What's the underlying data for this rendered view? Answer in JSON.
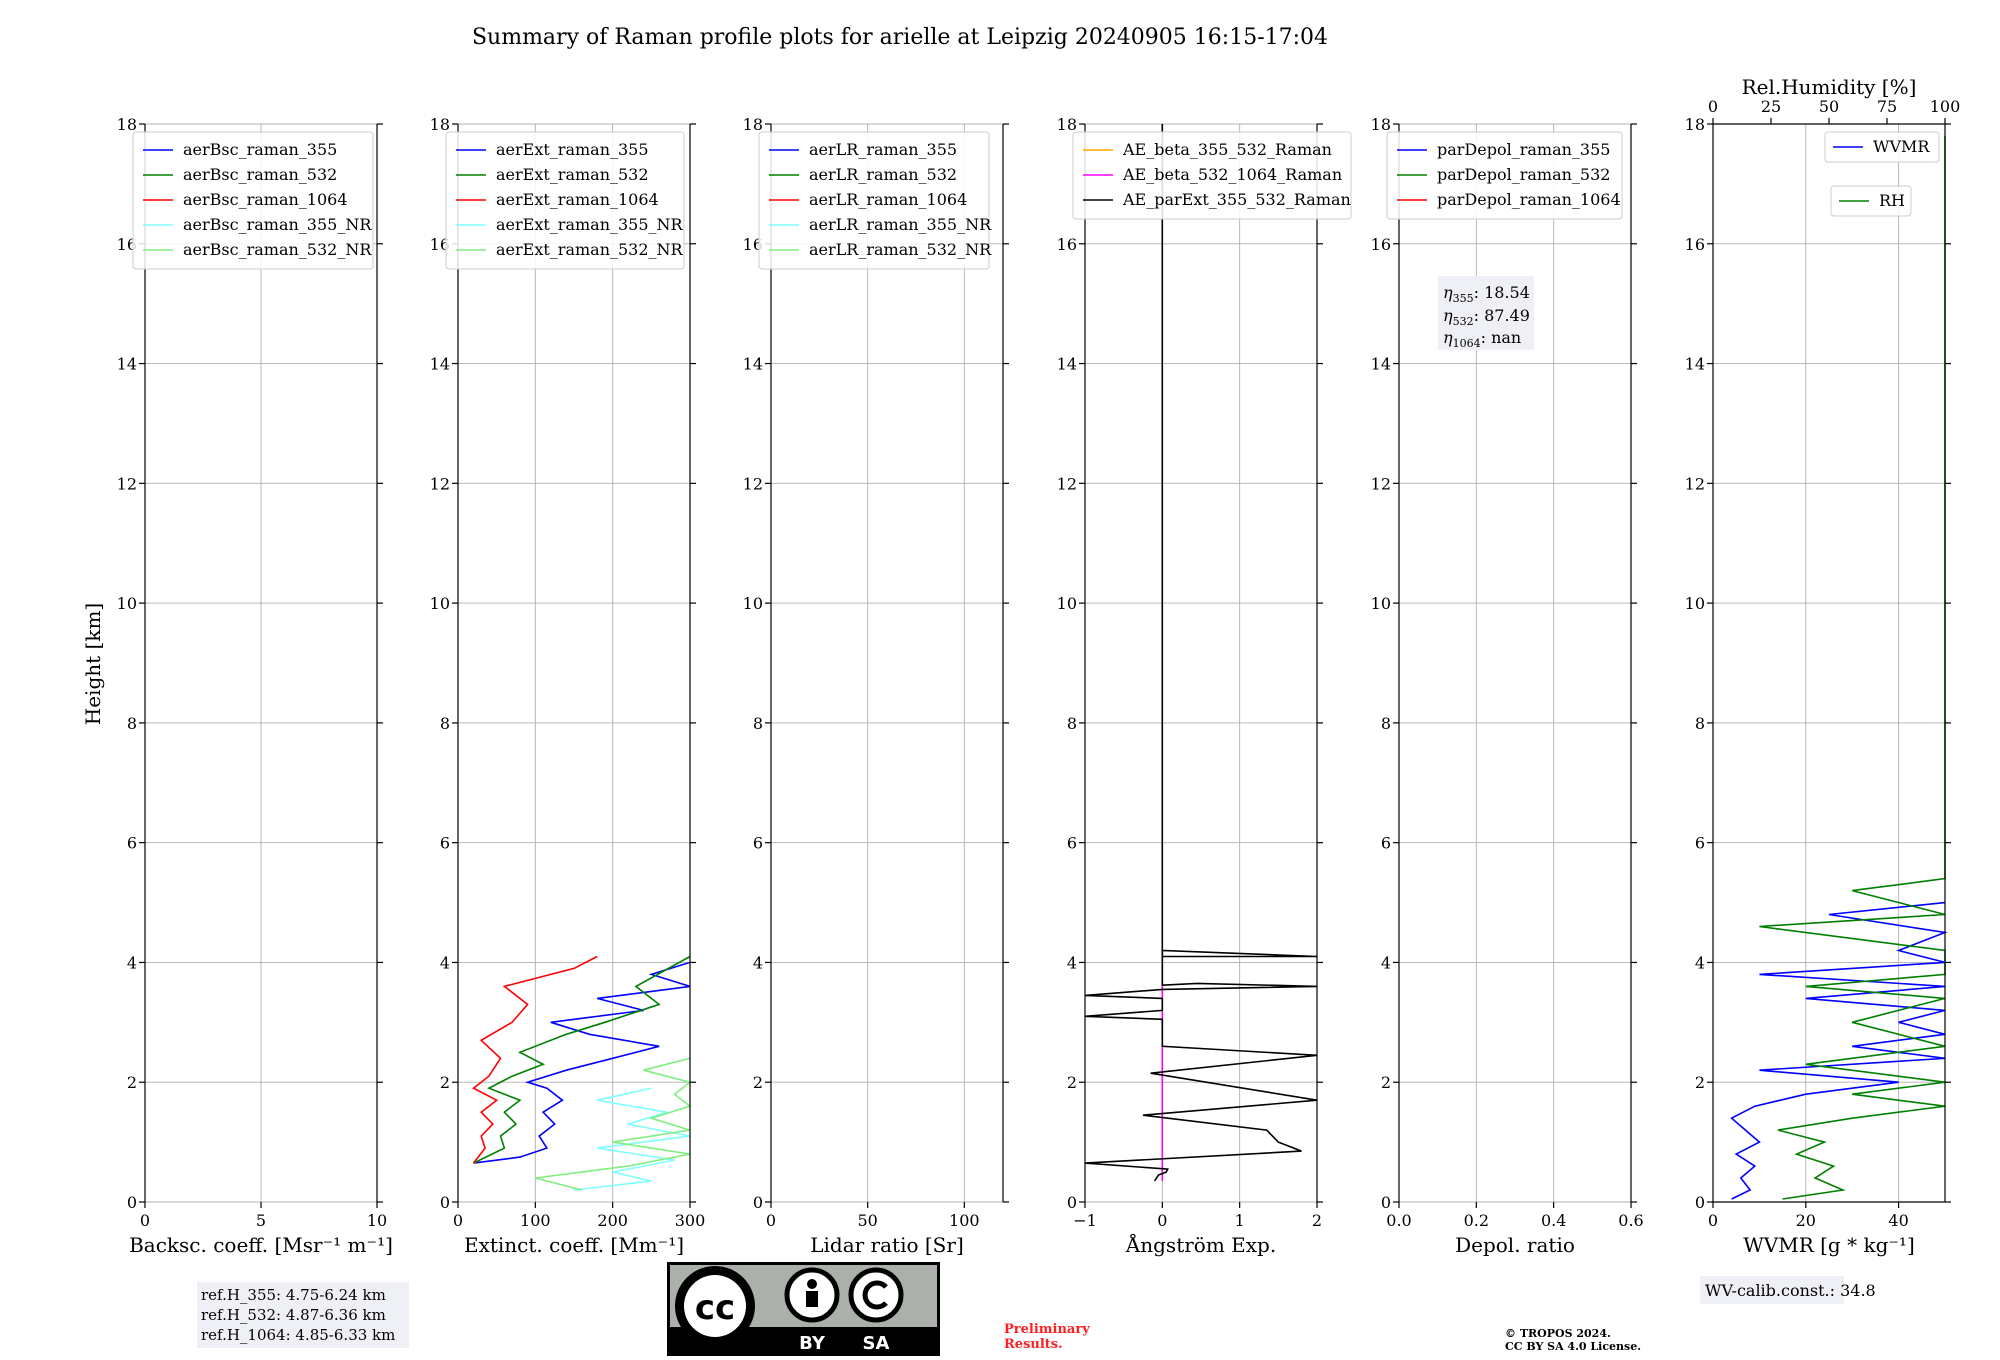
{
  "title": "Summary of Raman profile plots for arielle at Leipzig 20240905 16:15-17:04",
  "ylabel": "Height [km]",
  "yticks": [
    "0",
    "2",
    "4",
    "6",
    "8",
    "10",
    "12",
    "14",
    "16",
    "18"
  ],
  "colors": {
    "c355": "#0000ff",
    "c532": "#008000",
    "c1064": "#ff0000",
    "c355nr": "#80ffff",
    "c532nr": "#80ee80",
    "orange": "#ffa500",
    "magenta": "#ff00ff",
    "black": "#000000",
    "pol_bg": "#eef0f5"
  },
  "chart_data": [
    {
      "type": "line",
      "id": "bsc",
      "xlabel": "Backsc. coeff. [Msr⁻¹ m⁻¹]",
      "xlim": [
        0,
        10
      ],
      "ylim": [
        0,
        18
      ],
      "xticks": [
        "0",
        "5",
        "10"
      ],
      "xtick_values": [
        0,
        5,
        10
      ],
      "series": [
        {
          "name": "aerBsc_raman_355",
          "color": "c355",
          "points": []
        },
        {
          "name": "aerBsc_raman_532",
          "color": "c532",
          "points": []
        },
        {
          "name": "aerBsc_raman_1064",
          "color": "c1064",
          "points": []
        },
        {
          "name": "aerBsc_raman_355_NR",
          "color": "c355nr",
          "points": []
        },
        {
          "name": "aerBsc_raman_532_NR",
          "color": "c532nr",
          "points": []
        }
      ]
    },
    {
      "type": "line",
      "id": "ext",
      "xlabel": "Extinct. coeff. [Mm⁻¹]",
      "xlim": [
        0,
        300
      ],
      "ylim": [
        0,
        18
      ],
      "xticks": [
        "0",
        "100",
        "200",
        "300"
      ],
      "xtick_values": [
        0,
        100,
        200,
        300
      ],
      "series": [
        {
          "name": "aerExt_raman_355",
          "color": "c355",
          "points": [
            [
              20,
              0.65
            ],
            [
              80,
              0.75
            ],
            [
              115,
              0.9
            ],
            [
              105,
              1.1
            ],
            [
              125,
              1.3
            ],
            [
              110,
              1.5
            ],
            [
              135,
              1.7
            ],
            [
              115,
              1.9
            ],
            [
              90,
              2.0
            ],
            [
              140,
              2.2
            ],
            [
              200,
              2.4
            ],
            [
              260,
              2.6
            ],
            [
              170,
              2.8
            ],
            [
              120,
              3.0
            ],
            [
              240,
              3.2
            ],
            [
              180,
              3.4
            ],
            [
              300,
              3.6
            ],
            [
              250,
              3.8
            ],
            [
              300,
              4.0
            ]
          ]
        },
        {
          "name": "aerExt_raman_532",
          "color": "c532",
          "points": [
            [
              20,
              0.65
            ],
            [
              60,
              0.9
            ],
            [
              55,
              1.1
            ],
            [
              75,
              1.3
            ],
            [
              60,
              1.5
            ],
            [
              80,
              1.7
            ],
            [
              40,
              1.9
            ],
            [
              70,
              2.1
            ],
            [
              110,
              2.3
            ],
            [
              80,
              2.5
            ],
            [
              140,
              2.8
            ],
            [
              190,
              3.0
            ],
            [
              260,
              3.3
            ],
            [
              230,
              3.6
            ],
            [
              300,
              4.1
            ]
          ]
        },
        {
          "name": "aerExt_raman_1064",
          "color": "c1064",
          "points": [
            [
              20,
              0.65
            ],
            [
              35,
              0.9
            ],
            [
              30,
              1.1
            ],
            [
              45,
              1.3
            ],
            [
              30,
              1.5
            ],
            [
              50,
              1.7
            ],
            [
              20,
              1.9
            ],
            [
              40,
              2.1
            ],
            [
              55,
              2.4
            ],
            [
              30,
              2.7
            ],
            [
              70,
              3.0
            ],
            [
              90,
              3.3
            ],
            [
              60,
              3.6
            ],
            [
              150,
              3.9
            ],
            [
              180,
              4.1
            ]
          ]
        },
        {
          "name": "aerExt_raman_355_NR",
          "color": "c355nr",
          "points": [
            [
              150,
              0.2
            ],
            [
              250,
              0.35
            ],
            [
              200,
              0.5
            ],
            [
              280,
              0.7
            ],
            [
              180,
              0.9
            ],
            [
              300,
              1.1
            ],
            [
              220,
              1.3
            ],
            [
              270,
              1.5
            ],
            [
              180,
              1.7
            ],
            [
              250,
              1.9
            ]
          ]
        },
        {
          "name": "aerExt_raman_532_NR",
          "color": "c532nr",
          "points": [
            [
              160,
              0.2
            ],
            [
              100,
              0.4
            ],
            [
              220,
              0.6
            ],
            [
              300,
              0.8
            ],
            [
              200,
              1.0
            ],
            [
              300,
              1.2
            ],
            [
              250,
              1.4
            ],
            [
              300,
              1.6
            ],
            [
              280,
              1.8
            ],
            [
              300,
              2.0
            ],
            [
              240,
              2.2
            ],
            [
              300,
              2.4
            ]
          ]
        }
      ]
    },
    {
      "type": "line",
      "id": "lr",
      "xlabel": "Lidar ratio [Sr]",
      "xlim": [
        0,
        120
      ],
      "ylim": [
        0,
        18
      ],
      "xticks": [
        "0",
        "50",
        "100"
      ],
      "xtick_values": [
        0,
        50,
        100
      ],
      "series": [
        {
          "name": "aerLR_raman_355",
          "color": "c355",
          "points": []
        },
        {
          "name": "aerLR_raman_532",
          "color": "c532",
          "points": []
        },
        {
          "name": "aerLR_raman_1064",
          "color": "c1064",
          "points": []
        },
        {
          "name": "aerLR_raman_355_NR",
          "color": "c355nr",
          "points": []
        },
        {
          "name": "aerLR_raman_532_NR",
          "color": "c532nr",
          "points": []
        }
      ]
    },
    {
      "type": "line",
      "id": "ae",
      "xlabel": "Ångström Exp.",
      "xlim": [
        -1,
        2
      ],
      "ylim": [
        0,
        18
      ],
      "xticks": [
        "−1",
        "0",
        "1",
        "2"
      ],
      "xtick_values": [
        -1,
        0,
        1,
        2
      ],
      "series": [
        {
          "name": "AE_beta_355_532_Raman",
          "color": "orange",
          "points": []
        },
        {
          "name": "AE_beta_532_1064_Raman",
          "color": "magenta",
          "points": [
            [
              0,
              0.35
            ],
            [
              0,
              4.2
            ]
          ]
        },
        {
          "name": "AE_parExt_355_532_Raman",
          "color": "black",
          "points": [
            [
              -0.1,
              0.35
            ],
            [
              -0.05,
              0.45
            ],
            [
              0.05,
              0.5
            ],
            [
              0.07,
              0.55
            ],
            [
              -1,
              0.65
            ],
            [
              1.8,
              0.85
            ],
            [
              1.5,
              1.0
            ],
            [
              1.35,
              1.2
            ],
            [
              -0.25,
              1.45
            ],
            [
              2,
              1.7
            ],
            [
              -0.15,
              2.15
            ],
            [
              2,
              2.45
            ],
            [
              0,
              2.6
            ],
            [
              0,
              3.05
            ],
            [
              -1,
              3.1
            ],
            [
              0,
              3.2
            ],
            [
              0,
              3.4
            ],
            [
              -1,
              3.45
            ],
            [
              0,
              3.55
            ],
            [
              2,
              3.6
            ],
            [
              0.45,
              3.65
            ],
            [
              0,
              3.62
            ],
            [
              0,
              4.2
            ],
            [
              2,
              4.1
            ],
            [
              0,
              4.1
            ],
            [
              0,
              18
            ]
          ]
        }
      ]
    },
    {
      "type": "line",
      "id": "pdr",
      "xlabel": "Depol. ratio",
      "xlim": [
        0,
        0.6
      ],
      "ylim": [
        0,
        18
      ],
      "xticks": [
        "0.0",
        "0.2",
        "0.4",
        "0.6"
      ],
      "xtick_values": [
        0,
        0.2,
        0.4,
        0.6
      ],
      "series": [
        {
          "name": "parDepol_raman_355",
          "color": "c355",
          "points": []
        },
        {
          "name": "parDepol_raman_532",
          "color": "c532",
          "points": []
        },
        {
          "name": "parDepol_raman_1064",
          "color": "c1064",
          "points": []
        }
      ]
    },
    {
      "type": "line",
      "id": "wv",
      "xlabel": "WVMR [g * kg⁻¹]",
      "xlim": [
        0,
        50
      ],
      "ylim": [
        0,
        18
      ],
      "xticks": [
        "0",
        "20",
        "40"
      ],
      "xtick_values": [
        0,
        20,
        40
      ],
      "top_xlabel": "Rel.Humidity [%]",
      "top_xticks": [
        "0",
        "25",
        "50",
        "75",
        "100"
      ],
      "top_xtick_values": [
        0,
        25,
        50,
        75,
        100
      ],
      "series": [
        {
          "name": "WVMR",
          "color": "c355",
          "points": [
            [
              4,
              0.05
            ],
            [
              8,
              0.2
            ],
            [
              6,
              0.4
            ],
            [
              9,
              0.6
            ],
            [
              5,
              0.8
            ],
            [
              10,
              1.0
            ],
            [
              7,
              1.2
            ],
            [
              4,
              1.4
            ],
            [
              9,
              1.6
            ],
            [
              20,
              1.8
            ],
            [
              40,
              2.0
            ],
            [
              10,
              2.2
            ],
            [
              50,
              2.4
            ],
            [
              30,
              2.6
            ],
            [
              50,
              2.8
            ],
            [
              40,
              3.0
            ],
            [
              50,
              3.2
            ],
            [
              20,
              3.4
            ],
            [
              50,
              3.6
            ],
            [
              10,
              3.8
            ],
            [
              50,
              4.0
            ],
            [
              40,
              4.2
            ],
            [
              50,
              4.5
            ],
            [
              25,
              4.8
            ],
            [
              50,
              5.0
            ]
          ]
        },
        {
          "name": "RH",
          "color": "c532",
          "points": [
            [
              15,
              0.05
            ],
            [
              28,
              0.2
            ],
            [
              22,
              0.4
            ],
            [
              26,
              0.6
            ],
            [
              18,
              0.8
            ],
            [
              24,
              1.0
            ],
            [
              14,
              1.2
            ],
            [
              30,
              1.4
            ],
            [
              50,
              1.6
            ],
            [
              30,
              1.8
            ],
            [
              50,
              2.0
            ],
            [
              20,
              2.3
            ],
            [
              50,
              2.6
            ],
            [
              30,
              3.0
            ],
            [
              50,
              3.4
            ],
            [
              20,
              3.6
            ],
            [
              50,
              3.8
            ],
            [
              50,
              4.2
            ],
            [
              10,
              4.6
            ],
            [
              50,
              4.8
            ],
            [
              30,
              5.2
            ],
            [
              50,
              5.4
            ],
            [
              50,
              6.0
            ],
            [
              50,
              17.8
            ]
          ]
        }
      ]
    }
  ],
  "annotations": {
    "eta355": "18.54",
    "eta532": "87.49",
    "eta1064": "nan",
    "refH": [
      "ref.H_355: 4.75-6.24 km",
      "ref.H_532: 4.87-6.36 km",
      "ref.H_1064: 4.85-6.33 km"
    ],
    "wv_calib": "WV-calib.const.: 34.8",
    "preliminary": [
      "Preliminary",
      "Results."
    ],
    "copyright": [
      "© TROPOS 2024.",
      "CC BY SA 4.0 License."
    ],
    "cc_badge": [
      "cc",
      "BY",
      "SA"
    ]
  }
}
